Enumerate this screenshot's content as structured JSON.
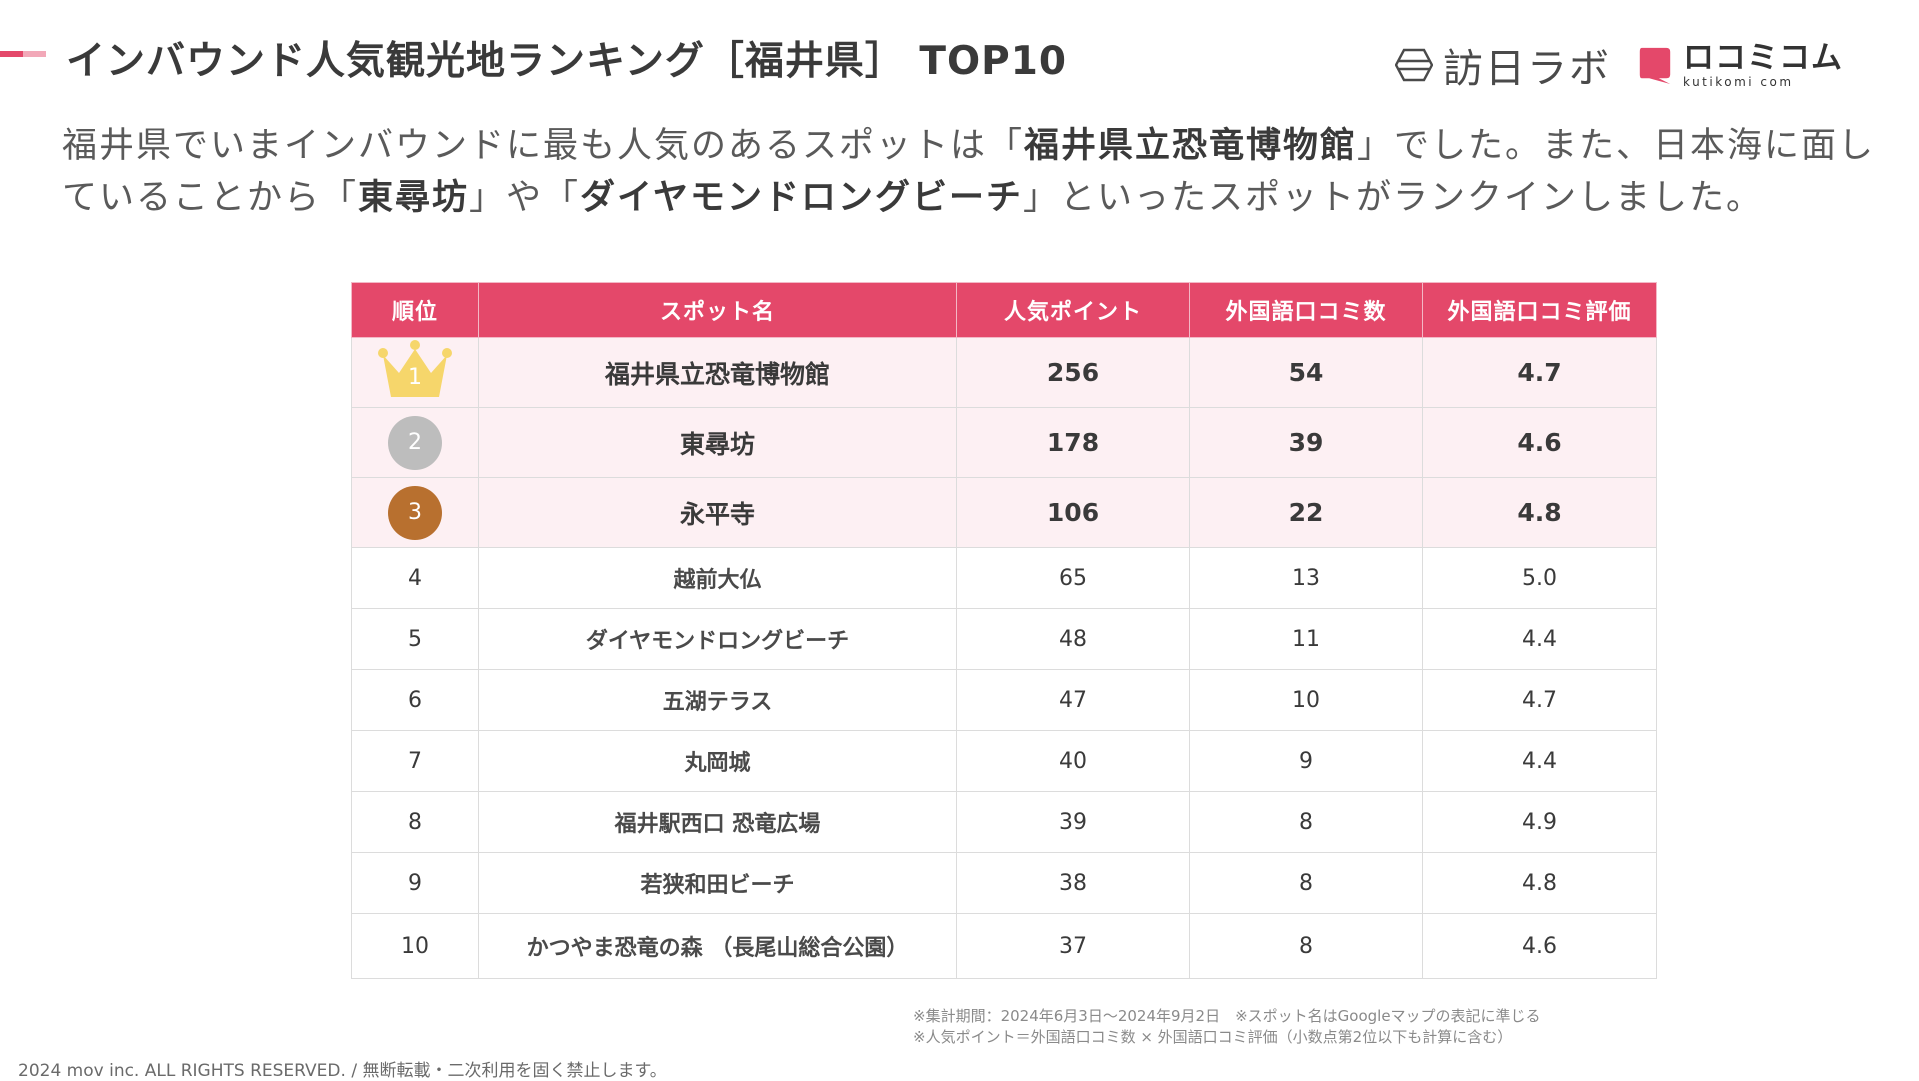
{
  "header": {
    "title": "インバウンド人気観光地ランキング［福井県］ TOP10",
    "logo_houjin": "訪日ラボ",
    "logo_kutikomi_jp": "ロコミコム",
    "logo_kutikomi_en": "kutikomi com"
  },
  "description": {
    "p1": "福井県でいまインバウンドに最も人気のあるスポットは「",
    "b1": "福井県立恐竜博物館",
    "p2": "」でした。また、日本海に面していることから「",
    "b2": "東尋坊",
    "p3": "」や「",
    "b3": "ダイヤモンドロングビーチ",
    "p4": "」といったスポットがランクインしました。"
  },
  "table": {
    "headers": [
      "順位",
      "スポット名",
      "人気ポイント",
      "外国語口コミ数",
      "外国語口コミ評価"
    ],
    "rows": [
      {
        "rank": "1",
        "spot": "福井県立恐竜博物館",
        "points": "256",
        "reviews": "54",
        "rating": "4.7"
      },
      {
        "rank": "2",
        "spot": "東尋坊",
        "points": "178",
        "reviews": "39",
        "rating": "4.6"
      },
      {
        "rank": "3",
        "spot": "永平寺",
        "points": "106",
        "reviews": "22",
        "rating": "4.8"
      },
      {
        "rank": "4",
        "spot": "越前大仏",
        "points": "65",
        "reviews": "13",
        "rating": "5.0"
      },
      {
        "rank": "5",
        "spot": "ダイヤモンドロングビーチ",
        "points": "48",
        "reviews": "11",
        "rating": "4.4"
      },
      {
        "rank": "6",
        "spot": "五湖テラス",
        "points": "47",
        "reviews": "10",
        "rating": "4.7"
      },
      {
        "rank": "7",
        "spot": "丸岡城",
        "points": "40",
        "reviews": "9",
        "rating": "4.4"
      },
      {
        "rank": "8",
        "spot": "福井駅西口 恐竜広場",
        "points": "39",
        "reviews": "8",
        "rating": "4.9"
      },
      {
        "rank": "9",
        "spot": "若狭和田ビーチ",
        "points": "38",
        "reviews": "8",
        "rating": "4.8"
      },
      {
        "rank": "10",
        "spot": "かつやま恐竜の森 （長尾山総合公園）",
        "points": "37",
        "reviews": "8",
        "rating": "4.6"
      }
    ]
  },
  "notes": {
    "line1": "※集計期間：2024年6月3日〜2024年9月2日　※スポット名はGoogleマップの表記に準じる",
    "line2": "※人気ポイント＝外国語口コミ数 × 外国語口コミ評価（小数点第2位以下も計算に含む）"
  },
  "footer": {
    "copyright": "2024 mov inc. ALL RIGHTS RESERVED. / 無断転載・二次利用を固く禁止します。"
  },
  "colors": {
    "accent": "#e4486a",
    "accent_light": "#f2a8b8",
    "top_row_bg": "#fdf0f3",
    "gold": "#f6d66b",
    "silver": "#bdbdbd",
    "bronze": "#b8702f"
  }
}
